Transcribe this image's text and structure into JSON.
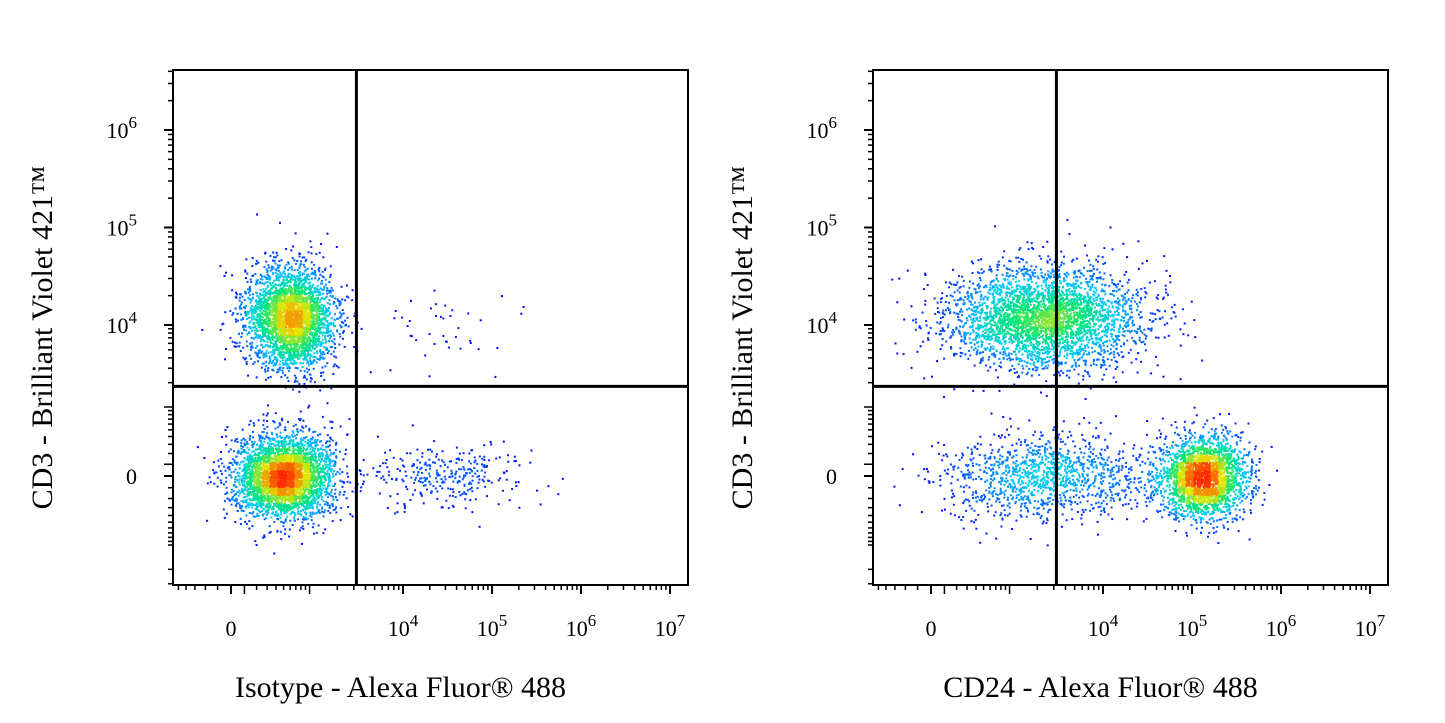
{
  "chart_data": [
    {
      "type": "scatter",
      "title": "",
      "xlabel": "Isotype - Alexa Fluor® 488",
      "ylabel": "CD3 - Brilliant Violet 421™",
      "x_scale": "biexponential",
      "y_scale": "biexponential",
      "x_ticks": [
        {
          "value": 0,
          "label": "0",
          "exp": ""
        },
        {
          "value": 10000,
          "label": "10",
          "exp": "4"
        },
        {
          "value": 100000,
          "label": "10",
          "exp": "5"
        },
        {
          "value": 1000000,
          "label": "10",
          "exp": "6"
        },
        {
          "value": 10000000,
          "label": "10",
          "exp": "7"
        }
      ],
      "y_ticks": [
        {
          "value": 0,
          "label": "0",
          "exp": ""
        },
        {
          "value": 10000,
          "label": "10",
          "exp": "4"
        },
        {
          "value": 100000,
          "label": "10",
          "exp": "5"
        },
        {
          "value": 1000000,
          "label": "10",
          "exp": "6"
        }
      ],
      "gate": {
        "x": 3200,
        "y": 1800
      },
      "populations": [
        {
          "name": "",
          "x": 600,
          "y": 12000,
          "x_spread": 0.55,
          "y_spread": 0.55,
          "n": 3200
        },
        {
          "name": "",
          "x": 500,
          "y": 0,
          "x_spread": 0.6,
          "y_spread": 0.45,
          "n": 3600
        },
        {
          "name": "",
          "x": 30000,
          "y": 0,
          "x_spread": 0.9,
          "y_spread": 0.35,
          "n": 300
        },
        {
          "name": "",
          "x": 30000,
          "y": 9000,
          "x_spread": 0.9,
          "y_spread": 0.4,
          "n": 40
        }
      ]
    },
    {
      "type": "scatter",
      "title": "",
      "xlabel": "CD24 - Alexa Fluor® 488",
      "ylabel": "CD3 - Brilliant Violet 421™",
      "x_scale": "biexponential",
      "y_scale": "biexponential",
      "x_ticks": [
        {
          "value": 0,
          "label": "0",
          "exp": ""
        },
        {
          "value": 10000,
          "label": "10",
          "exp": "4"
        },
        {
          "value": 100000,
          "label": "10",
          "exp": "5"
        },
        {
          "value": 1000000,
          "label": "10",
          "exp": "6"
        },
        {
          "value": 10000000,
          "label": "10",
          "exp": "7"
        }
      ],
      "y_ticks": [
        {
          "value": 0,
          "label": "0",
          "exp": ""
        },
        {
          "value": 10000,
          "label": "10",
          "exp": "4"
        },
        {
          "value": 100000,
          "label": "10",
          "exp": "5"
        },
        {
          "value": 1000000,
          "label": "10",
          "exp": "6"
        }
      ],
      "gate": {
        "x": 3200,
        "y": 1800
      },
      "populations": [
        {
          "name": "",
          "x": 2500,
          "y": 12000,
          "x_spread": 1.2,
          "y_spread": 0.55,
          "n": 3400
        },
        {
          "name": "",
          "x": 130000,
          "y": 0,
          "x_spread": 0.55,
          "y_spread": 0.45,
          "n": 2600
        },
        {
          "name": "",
          "x": 2500,
          "y": 0,
          "x_spread": 1.3,
          "y_spread": 0.45,
          "n": 1200
        }
      ]
    }
  ]
}
